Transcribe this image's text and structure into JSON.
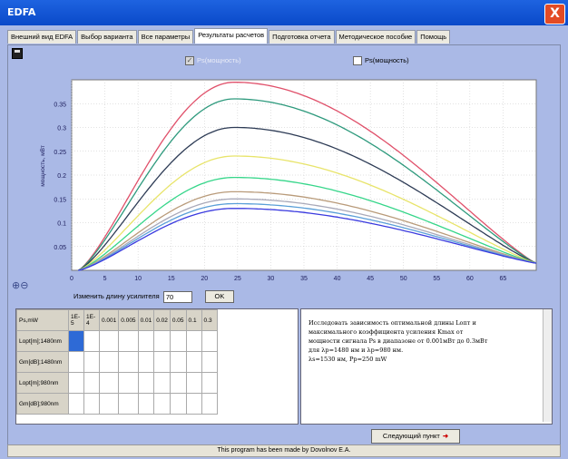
{
  "window": {
    "title": "EDFA",
    "close_label": "X"
  },
  "tabs": [
    {
      "label": "Внешний вид EDFA",
      "active": false
    },
    {
      "label": "Выбор варианта",
      "active": false
    },
    {
      "label": "Все параметры",
      "active": false
    },
    {
      "label": "Результаты расчетов",
      "active": true
    },
    {
      "label": "Подготовка отчета",
      "active": false
    },
    {
      "label": "Методическое пособие",
      "active": false
    },
    {
      "label": "Помощь",
      "active": false
    }
  ],
  "checkboxes": [
    {
      "label": "Ps(мощность)",
      "checked": true
    },
    {
      "label": "Ps(мощность)",
      "checked": false
    }
  ],
  "chart_data": {
    "type": "line",
    "ylabel": "мощность, мВт",
    "xlim": [
      0,
      70
    ],
    "ylim": [
      0,
      0.4
    ],
    "xticks": [
      0,
      5,
      10,
      15,
      20,
      25,
      30,
      35,
      40,
      45,
      50,
      55,
      60,
      65
    ],
    "yticks": [
      0.05,
      0.1,
      0.15,
      0.2,
      0.25,
      0.3,
      0.35
    ],
    "peak_x": 24.5,
    "end_y": 0.015,
    "grid": true,
    "series": [
      {
        "peak": 0.395,
        "color": "#e0506a"
      },
      {
        "peak": 0.36,
        "color": "#2e9a7d"
      },
      {
        "peak": 0.3,
        "color": "#2d3b55"
      },
      {
        "peak": 0.24,
        "color": "#e8e46a"
      },
      {
        "peak": 0.195,
        "color": "#36d68a"
      },
      {
        "peak": 0.165,
        "color": "#b99b7a"
      },
      {
        "peak": 0.15,
        "color": "#a9a9b9"
      },
      {
        "peak": 0.14,
        "color": "#5a9fd8"
      },
      {
        "peak": 0.13,
        "color": "#3a3adf"
      }
    ]
  },
  "length_control": {
    "label": "Изменить длину усилителя",
    "value": "70",
    "ok_label": "OK"
  },
  "table": {
    "corner": "Ps,mW",
    "columns": [
      "1E-5",
      "1E-4",
      "0.001",
      "0.005",
      "0.01",
      "0.02",
      "0.05",
      "0.1",
      "0.3"
    ],
    "rows": [
      "Lopt[m];1480nm",
      "Gm[dB];1480nm",
      "Lopt[m];980nm",
      "Gm[dB];980nm"
    ]
  },
  "task_text": [
    "Исследовать зависимость оптимальной длины Lопт и",
    "максимального коэффициента усиления Kmax от",
    "мощности сигнала Ps в диапазоне от 0.001мВт до 0.3мВт",
    "для λp=1480 нм и λp=980 нм.",
    "λs=1530 нм,        Pp=250 mW"
  ],
  "next_button": {
    "label": "Следующий пункт"
  },
  "footer": {
    "text": "This program has been made by Dovolnov E.A."
  }
}
